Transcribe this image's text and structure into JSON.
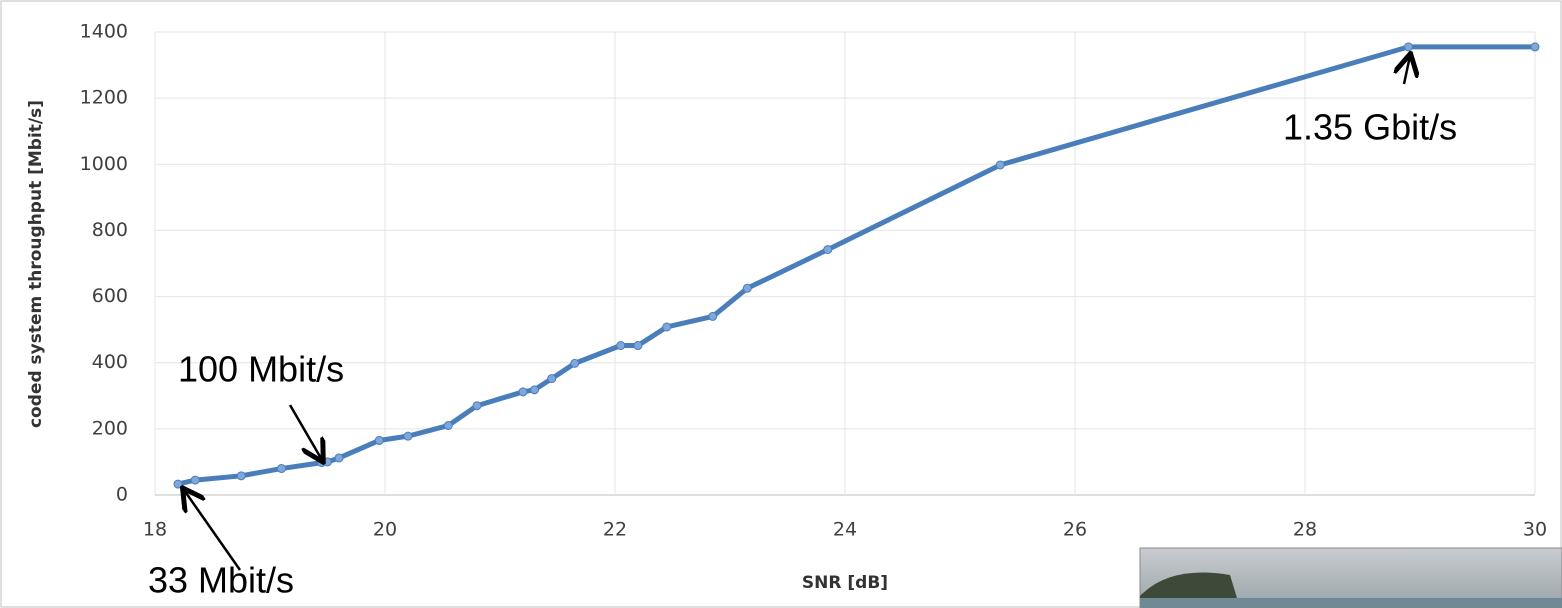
{
  "chart_data": {
    "type": "line",
    "y_label": "coded system throughput [Mbit/s]",
    "x_label": "SNR [dB]",
    "annotations": [
      "100 Mbit/s",
      "33 Mbit/s",
      "1.35 Gbit/s"
    ],
    "x": [
      18.2,
      18.35,
      18.75,
      19.1,
      19.45,
      19.5,
      19.6,
      19.95,
      20.2,
      20.55,
      20.8,
      21.2,
      21.3,
      21.45,
      21.65,
      22.05,
      22.2,
      22.45,
      22.85,
      23.15,
      23.85,
      25.35,
      28.9,
      30
    ],
    "series": [
      {
        "color": "#4a7ebb",
        "values": [
          33,
          45,
          58,
          80,
          98,
          100,
          112,
          165,
          178,
          210,
          270,
          312,
          318,
          352,
          398,
          452,
          452,
          508,
          540,
          625,
          742,
          998,
          1355,
          1355
        ]
      }
    ],
    "xlim": [
      18,
      30
    ],
    "ylim": [
      0,
      1400
    ],
    "xticks": [
      18,
      20,
      22,
      24,
      26,
      28,
      30
    ],
    "yticks": [
      0,
      200,
      400,
      600,
      800,
      1000,
      1200,
      1400
    ],
    "grid": true
  }
}
